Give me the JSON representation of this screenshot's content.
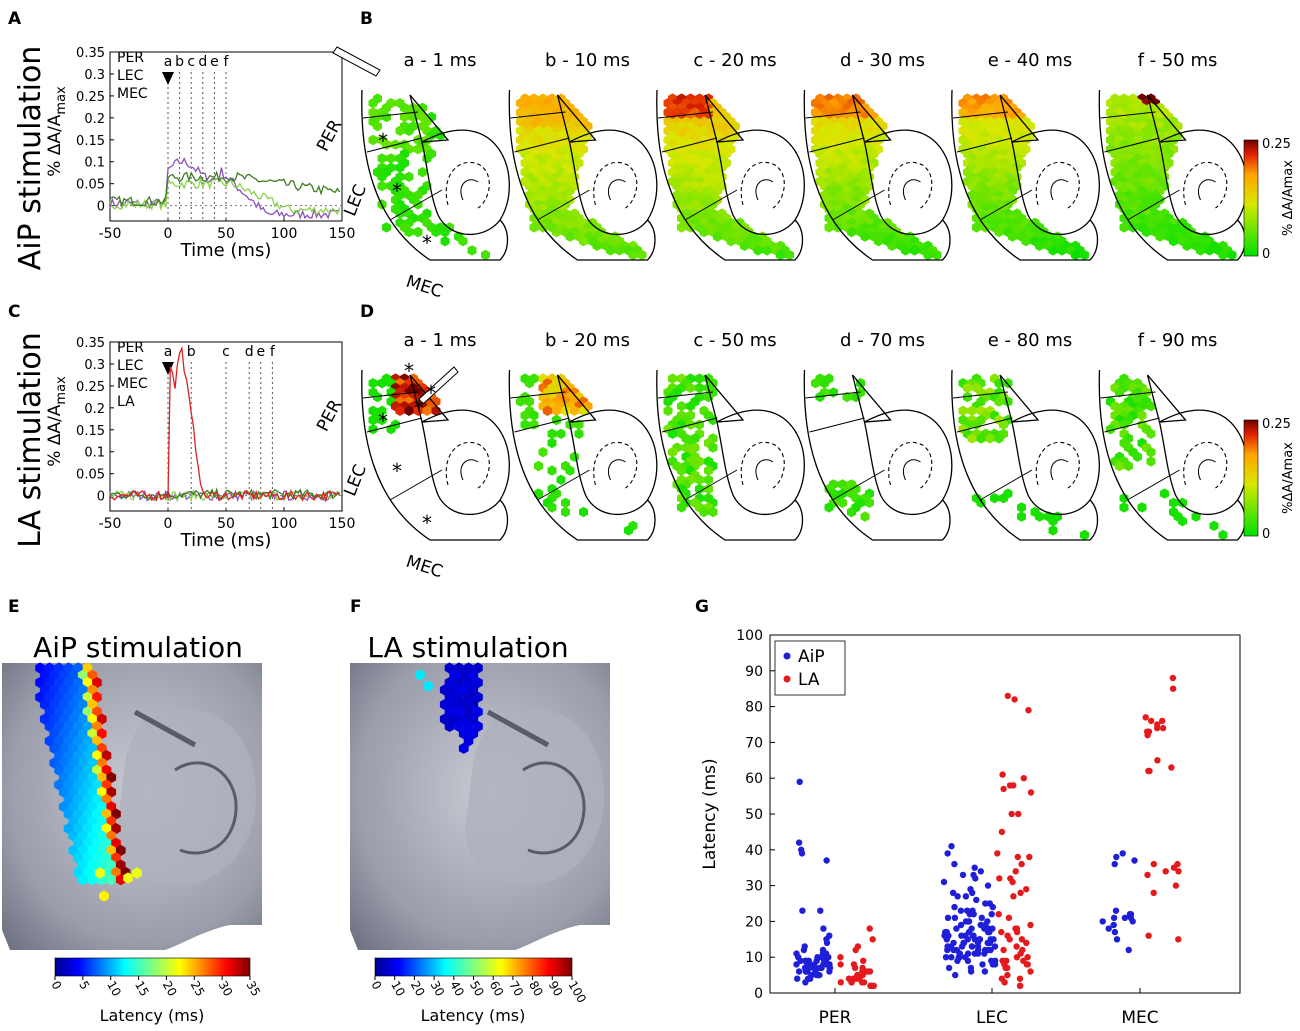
{
  "panel_letters": [
    "A",
    "B",
    "C",
    "D",
    "E",
    "F",
    "G"
  ],
  "row_titles": {
    "aip": "AiP stimulation",
    "la": "LA stimulation"
  },
  "colors": {
    "per": "#8b4fc0",
    "lec": "#8cd24a",
    "mec": "#3e7d24",
    "la": "#e02020",
    "aip_dot": "#1f1fd8",
    "la_dot": "#e41a1c",
    "tissue": "#7a7d8c"
  },
  "traces": {
    "y_label_main": "% ΔA/A",
    "y_label_sub": "max",
    "x_label": "Time (ms)",
    "x_ticks": [
      "-50",
      "0",
      "50",
      "100",
      "150"
    ],
    "y_ticks": [
      "0",
      "0.05",
      "0.1",
      "0.15",
      "0.2",
      "0.25",
      "0.3",
      "0.35"
    ],
    "A": {
      "legend": [
        "PER",
        "LEC",
        "MEC"
      ],
      "markers": [
        "a",
        "b",
        "c",
        "d",
        "e",
        "f"
      ],
      "marker_times": [
        0,
        10,
        20,
        30,
        40,
        50
      ]
    },
    "C": {
      "legend": [
        "PER",
        "LEC",
        "MEC",
        "LA"
      ],
      "markers": [
        "a",
        "b",
        "c",
        "d",
        "e",
        "f"
      ],
      "marker_times": [
        0,
        20,
        50,
        70,
        80,
        90
      ]
    }
  },
  "maps": {
    "B": [
      "a - 1 ms",
      "b - 10 ms",
      "c - 20 ms",
      "d - 30 ms",
      "e - 40 ms",
      "f - 50 ms"
    ],
    "D": [
      "a - 1 ms",
      "b - 20 ms",
      "c - 50 ms",
      "d - 70 ms",
      "e - 80 ms",
      "f - 90 ms"
    ],
    "region_labels": [
      "PER",
      "LEC",
      "MEC"
    ],
    "asterisk": "*",
    "colorbar": {
      "max": "0.25",
      "min": "0",
      "label_B": "% ΔA/Amax",
      "label_D": "%ΔA/Amax"
    }
  },
  "panel_E": {
    "title": "AiP stimulation",
    "colorbar_ticks": [
      "0",
      "5",
      "10",
      "15",
      "20",
      "25",
      "30",
      "35"
    ],
    "colorbar_label": "Latency (ms)"
  },
  "panel_F": {
    "title": "LA stimulation",
    "colorbar_ticks": [
      "0",
      "10",
      "20",
      "30",
      "40",
      "50",
      "60",
      "70",
      "80",
      "90",
      "100"
    ],
    "colorbar_label": "Latency (ms)"
  },
  "chart_data": {
    "type": "scatter",
    "title": "",
    "xlabel": "",
    "ylabel": "Latency (ms)",
    "categories": [
      "PER",
      "LEC",
      "MEC"
    ],
    "ylim": [
      0,
      100
    ],
    "y_ticks": [
      "0",
      "10",
      "20",
      "30",
      "40",
      "50",
      "60",
      "70",
      "80",
      "90",
      "100"
    ],
    "grid": false,
    "legend_position": "top-left",
    "series": [
      {
        "name": "AiP",
        "groups": [
          [
            59,
            42,
            40,
            39,
            37,
            23,
            23,
            18,
            16,
            15,
            14,
            13,
            12,
            12,
            11,
            11,
            11,
            10,
            10,
            10,
            10,
            10,
            9,
            9,
            9,
            9,
            9,
            9,
            9,
            8,
            8,
            8,
            8,
            8,
            8,
            8,
            8,
            8,
            7,
            7,
            7,
            7,
            7,
            7,
            7,
            7,
            6,
            6,
            6,
            6,
            6,
            6,
            5,
            5,
            5,
            5,
            4,
            4,
            4,
            3
          ],
          [
            41,
            39,
            36,
            35,
            34,
            33,
            33,
            32,
            31,
            30,
            29,
            28,
            28,
            27,
            27,
            26,
            25,
            25,
            24,
            24,
            23,
            23,
            23,
            22,
            22,
            22,
            21,
            21,
            21,
            20,
            20,
            20,
            20,
            19,
            19,
            19,
            19,
            18,
            18,
            18,
            18,
            18,
            17,
            17,
            17,
            17,
            17,
            16,
            16,
            16,
            16,
            16,
            16,
            15,
            15,
            15,
            15,
            15,
            15,
            15,
            14,
            14,
            14,
            14,
            14,
            14,
            14,
            13,
            13,
            13,
            13,
            13,
            13,
            13,
            12,
            12,
            12,
            12,
            12,
            12,
            12,
            11,
            11,
            11,
            11,
            11,
            11,
            10,
            10,
            10,
            10,
            10,
            9,
            9,
            9,
            9,
            8,
            8,
            8,
            7,
            7,
            6,
            6,
            5
          ],
          [
            39,
            38,
            37,
            36,
            23,
            22,
            22,
            21,
            21,
            21,
            20,
            20,
            19,
            18,
            17,
            15,
            12
          ]
        ]
      },
      {
        "name": "LA",
        "groups": [
          [
            18,
            15,
            13,
            12,
            10,
            9,
            8,
            8,
            7,
            7,
            6,
            6,
            6,
            5,
            5,
            5,
            5,
            4,
            4,
            4,
            4,
            3,
            3,
            3,
            3,
            3,
            2,
            2,
            2,
            2
          ],
          [
            83,
            82,
            79,
            61,
            60,
            58,
            58,
            57,
            56,
            50,
            50,
            45,
            39,
            38,
            38,
            36,
            34,
            32,
            32,
            31,
            29,
            28,
            27,
            22,
            21,
            19,
            18,
            18,
            17,
            17,
            16,
            15,
            15,
            14,
            13,
            12,
            12,
            11,
            10,
            10,
            9,
            9,
            9,
            8,
            8,
            8,
            7,
            7,
            6,
            5,
            4,
            4,
            3,
            2,
            2
          ],
          [
            88,
            85,
            77,
            76,
            76,
            75,
            74,
            74,
            73,
            73,
            72,
            65,
            63,
            62,
            62,
            36,
            36,
            35,
            34,
            34,
            33,
            30,
            28,
            16,
            15
          ]
        ]
      }
    ]
  }
}
